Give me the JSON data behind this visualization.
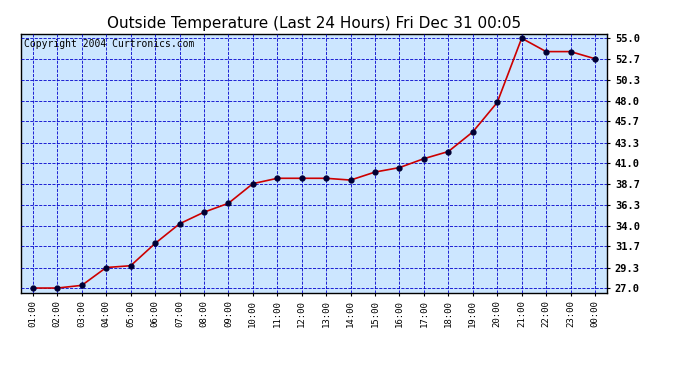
{
  "title": "Outside Temperature (Last 24 Hours) Fri Dec 31 00:05",
  "copyright": "Copyright 2004 Curtronics.com",
  "x_labels": [
    "01:00",
    "02:00",
    "03:00",
    "04:00",
    "05:00",
    "06:00",
    "07:00",
    "08:00",
    "09:00",
    "10:00",
    "11:00",
    "12:00",
    "13:00",
    "14:00",
    "15:00",
    "16:00",
    "17:00",
    "18:00",
    "19:00",
    "20:00",
    "21:00",
    "22:00",
    "23:00",
    "00:00"
  ],
  "y_values": [
    27.0,
    27.0,
    27.3,
    29.3,
    29.5,
    32.0,
    34.2,
    35.5,
    36.5,
    38.7,
    39.3,
    39.3,
    39.3,
    39.1,
    40.0,
    40.5,
    41.5,
    42.3,
    44.5,
    47.8,
    55.0,
    53.5,
    53.5,
    52.7
  ],
  "yticks": [
    27.0,
    29.3,
    31.7,
    34.0,
    36.3,
    38.7,
    41.0,
    43.3,
    45.7,
    48.0,
    50.3,
    52.7,
    55.0
  ],
  "ylim": [
    26.5,
    55.5
  ],
  "line_color": "#cc0000",
  "marker_color": "#000033",
  "grid_color": "#0000cc",
  "bg_color": "#cce6ff",
  "fig_bg_color": "#ffffff",
  "title_fontsize": 11,
  "copyright_fontsize": 7
}
